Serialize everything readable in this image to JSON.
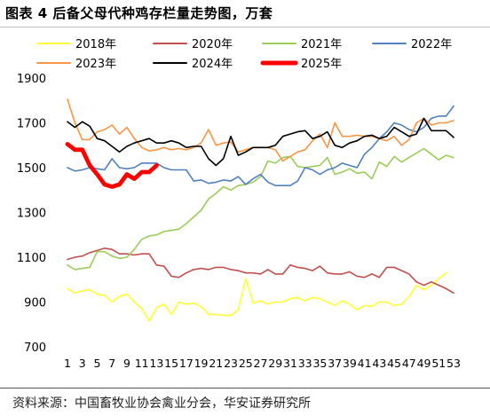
{
  "title": "图表 4  后备父母代种鸡存栏量走势图，万套",
  "source": "资料来源：中国畜牧业协会禽业分会，华安证券研究所",
  "chart_data": {
    "type": "line",
    "title": "图表 4  后备父母代种鸡存栏量走势图，万套",
    "xlabel": "",
    "ylabel": "",
    "ylim": [
      700,
      1900
    ],
    "yticks": [
      700,
      900,
      1100,
      1300,
      1500,
      1700,
      1900
    ],
    "xlim": [
      1,
      53
    ],
    "xtick_labels": [
      "1",
      "3",
      "5",
      "7",
      "9",
      "11",
      "13",
      "15",
      "17",
      "19",
      "21",
      "23",
      "25",
      "27",
      "29",
      "31",
      "33",
      "35",
      "37",
      "39",
      "41",
      "43",
      "45",
      "47",
      "49",
      "51",
      "53"
    ],
    "x_start": 1,
    "grid": false,
    "legend": "top",
    "series": [
      {
        "name": "2018年",
        "color": "#ffff33",
        "width": 1.6,
        "values": [
          960,
          940,
          950,
          955,
          935,
          930,
          900,
          925,
          935,
          900,
          870,
          815,
          875,
          890,
          845,
          900,
          890,
          895,
          880,
          845,
          845,
          840,
          840,
          865,
          1005,
          895,
          905,
          890,
          900,
          900,
          915,
          920,
          905,
          920,
          915,
          900,
          885,
          905,
          890,
          865,
          885,
          880,
          900,
          900,
          885,
          890,
          925,
          975,
          955,
          975,
          1005,
          1030
        ]
      },
      {
        "name": "2020年",
        "color": "#c0504d",
        "width": 1.6,
        "values": [
          1090,
          1100,
          1105,
          1120,
          1130,
          1140,
          1135,
          1115,
          1115,
          1110,
          1115,
          1115,
          1065,
          1060,
          1015,
          1010,
          1030,
          1045,
          1050,
          1045,
          1055,
          1055,
          1045,
          1040,
          1030,
          1030,
          1025,
          1045,
          1025,
          1025,
          1065,
          1055,
          1050,
          1040,
          1060,
          1030,
          1025,
          1025,
          1035,
          1015,
          1010,
          1025,
          1010,
          1055,
          1055,
          1040,
          1025,
          990,
          975,
          990,
          975,
          960,
          940
        ]
      },
      {
        "name": "2021年",
        "color": "#9acd58",
        "width": 1.6,
        "values": [
          1065,
          1045,
          1050,
          1055,
          1125,
          1125,
          1105,
          1095,
          1100,
          1135,
          1180,
          1195,
          1200,
          1215,
          1220,
          1225,
          1250,
          1280,
          1310,
          1360,
          1385,
          1415,
          1400,
          1420,
          1425,
          1435,
          1460,
          1530,
          1520,
          1545,
          1550,
          1505,
          1500,
          1505,
          1510,
          1545,
          1470,
          1480,
          1495,
          1475,
          1480,
          1450,
          1525,
          1505,
          1550,
          1525,
          1545,
          1565,
          1585,
          1560,
          1535,
          1555,
          1545
        ]
      },
      {
        "name": "2022年",
        "color": "#4f81bd",
        "width": 1.6,
        "values": [
          1500,
          1485,
          1490,
          1500,
          1495,
          1490,
          1540,
          1500,
          1495,
          1500,
          1520,
          1520,
          1520,
          1500,
          1490,
          1490,
          1490,
          1440,
          1445,
          1430,
          1435,
          1445,
          1440,
          1460,
          1425,
          1450,
          1470,
          1435,
          1420,
          1420,
          1420,
          1440,
          1500,
          1490,
          1470,
          1490,
          1500,
          1520,
          1510,
          1500,
          1560,
          1590,
          1630,
          1660,
          1700,
          1690,
          1670,
          1660,
          1680,
          1720,
          1730,
          1730,
          1775
        ]
      },
      {
        "name": "2023年",
        "color": "#f79646",
        "width": 1.6,
        "values": [
          1805,
          1700,
          1625,
          1625,
          1660,
          1670,
          1690,
          1650,
          1680,
          1630,
          1590,
          1575,
          1580,
          1590,
          1580,
          1585,
          1580,
          1590,
          1610,
          1670,
          1600,
          1610,
          1615,
          1570,
          1580,
          1590,
          1590,
          1590,
          1580,
          1530,
          1550,
          1570,
          1580,
          1620,
          1650,
          1590,
          1700,
          1640,
          1640,
          1645,
          1640,
          1640,
          1630,
          1620,
          1640,
          1600,
          1625,
          1700,
          1720,
          1690,
          1700,
          1700,
          1710
        ]
      },
      {
        "name": "2024年",
        "color": "#000000",
        "width": 1.6,
        "values": [
          1705,
          1680,
          1705,
          1685,
          1630,
          1620,
          1595,
          1570,
          1595,
          1610,
          1620,
          1630,
          1610,
          1610,
          1620,
          1610,
          1590,
          1595,
          1595,
          1540,
          1510,
          1540,
          1640,
          1555,
          1570,
          1590,
          1590,
          1590,
          1600,
          1640,
          1650,
          1660,
          1665,
          1630,
          1640,
          1660,
          1600,
          1590,
          1610,
          1620,
          1640,
          1645,
          1630,
          1640,
          1680,
          1660,
          1640,
          1650,
          1720,
          1665,
          1665,
          1665,
          1635
        ]
      },
      {
        "name": "2025年",
        "color": "#ff0000",
        "width": 4.8,
        "values": [
          1605,
          1580,
          1580,
          1510,
          1470,
          1425,
          1415,
          1425,
          1470,
          1450,
          1480,
          1480,
          1510
        ]
      }
    ]
  }
}
